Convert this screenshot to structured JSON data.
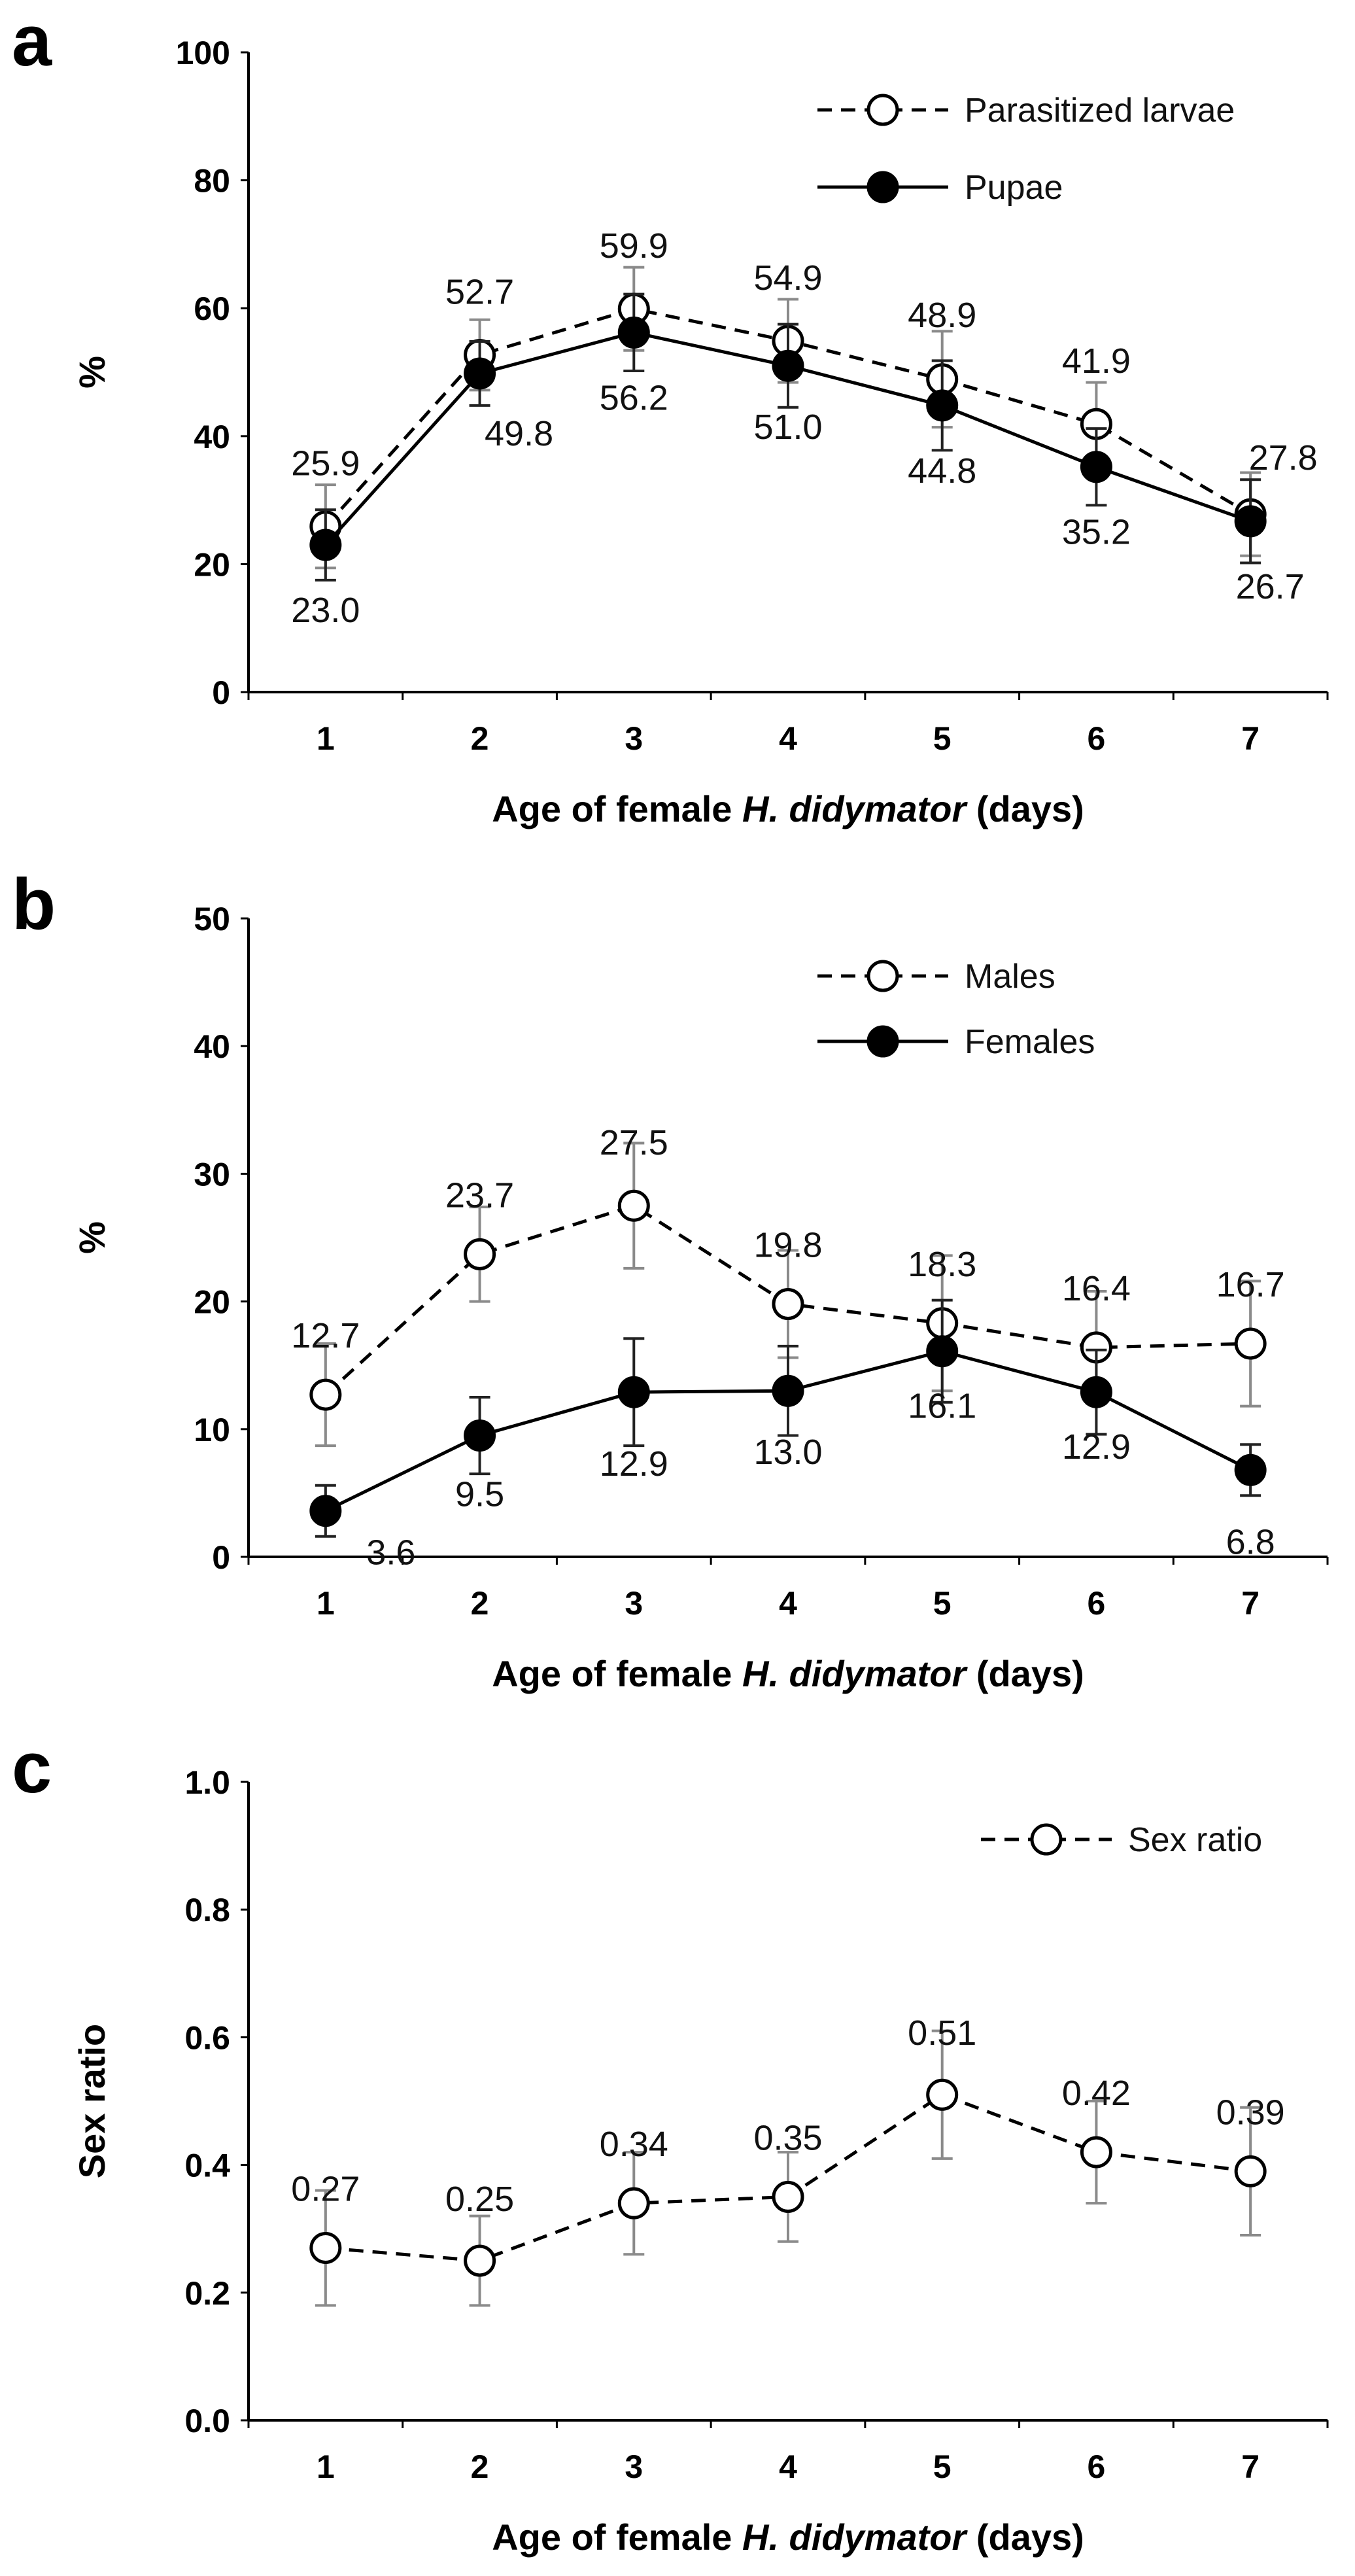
{
  "chart_data": [
    {
      "panel": "a",
      "type": "line",
      "xlabel": "Age of female ",
      "xlabel_italic": "H. didymator",
      "xlabel_suffix": " (days)",
      "ylabel": "%",
      "ylim": [
        0,
        100
      ],
      "yticks": [
        "0",
        "20",
        "40",
        "60",
        "80",
        "100"
      ],
      "categories": [
        "1",
        "2",
        "3",
        "4",
        "5",
        "6",
        "7"
      ],
      "legend_position": "top-right",
      "series": [
        {
          "name": "Parasitized larvae",
          "style": "dashed-open",
          "values": [
            25.9,
            52.7,
            59.9,
            54.9,
            48.9,
            41.9,
            27.8
          ],
          "labels": [
            "25.9",
            "52.7",
            "59.9",
            "54.9",
            "48.9",
            "41.9",
            "27.8"
          ],
          "errors": [
            6.5,
            5.5,
            6.5,
            6.5,
            7.5,
            6.5,
            6.5
          ]
        },
        {
          "name": "Pupae",
          "style": "solid-filled",
          "values": [
            23.0,
            49.8,
            56.2,
            51.0,
            44.8,
            35.2,
            26.7
          ],
          "labels": [
            "23.0",
            "49.8",
            "56.2",
            "51.0",
            "44.8",
            "35.2",
            "26.7"
          ],
          "errors": [
            5.5,
            5.0,
            6.0,
            6.5,
            7.0,
            6.0,
            6.5
          ]
        }
      ]
    },
    {
      "panel": "b",
      "type": "line",
      "xlabel": "Age of female ",
      "xlabel_italic": "H. didymator",
      "xlabel_suffix": " (days)",
      "ylabel": "%",
      "ylim": [
        0,
        50
      ],
      "yticks": [
        "0",
        "10",
        "20",
        "30",
        "40",
        "50"
      ],
      "categories": [
        "1",
        "2",
        "3",
        "4",
        "5",
        "6",
        "7"
      ],
      "legend_position": "top-right",
      "series": [
        {
          "name": "Males",
          "style": "dashed-open",
          "values": [
            12.7,
            23.7,
            27.5,
            19.8,
            18.3,
            16.4,
            16.7
          ],
          "labels": [
            "12.7",
            "23.7",
            "27.5",
            "19.8",
            "18.3",
            "16.4",
            "16.7"
          ],
          "errors": [
            4.0,
            3.7,
            4.9,
            4.2,
            5.3,
            4.4,
            4.9
          ]
        },
        {
          "name": "Females",
          "style": "solid-filled",
          "values": [
            3.6,
            9.5,
            12.9,
            13.0,
            16.1,
            12.9,
            6.8
          ],
          "labels": [
            "3.6",
            "9.5",
            "12.9",
            "13.0",
            "16.1",
            "12.9",
            "6.8"
          ],
          "errors": [
            2.0,
            3.0,
            4.2,
            3.5,
            4.0,
            3.3,
            2.0
          ]
        }
      ]
    },
    {
      "panel": "c",
      "type": "line",
      "xlabel": "Age of female ",
      "xlabel_italic": "H. didymator",
      "xlabel_suffix": " (days)",
      "ylabel": "Sex ratio",
      "ylim": [
        0,
        1
      ],
      "yticks": [
        "0.0",
        "0.2",
        "0.4",
        "0.6",
        "0.8",
        "1.0"
      ],
      "categories": [
        "1",
        "2",
        "3",
        "4",
        "5",
        "6",
        "7"
      ],
      "legend_position": "top-right",
      "series": [
        {
          "name": "Sex ratio",
          "style": "dashed-open",
          "values": [
            0.27,
            0.25,
            0.34,
            0.35,
            0.51,
            0.42,
            0.39
          ],
          "labels": [
            "0.27",
            "0.25",
            "0.34",
            "0.35",
            "0.51",
            "0.42",
            "0.39"
          ],
          "errors": [
            0.09,
            0.07,
            0.08,
            0.07,
            0.1,
            0.08,
            0.1
          ]
        }
      ]
    }
  ]
}
